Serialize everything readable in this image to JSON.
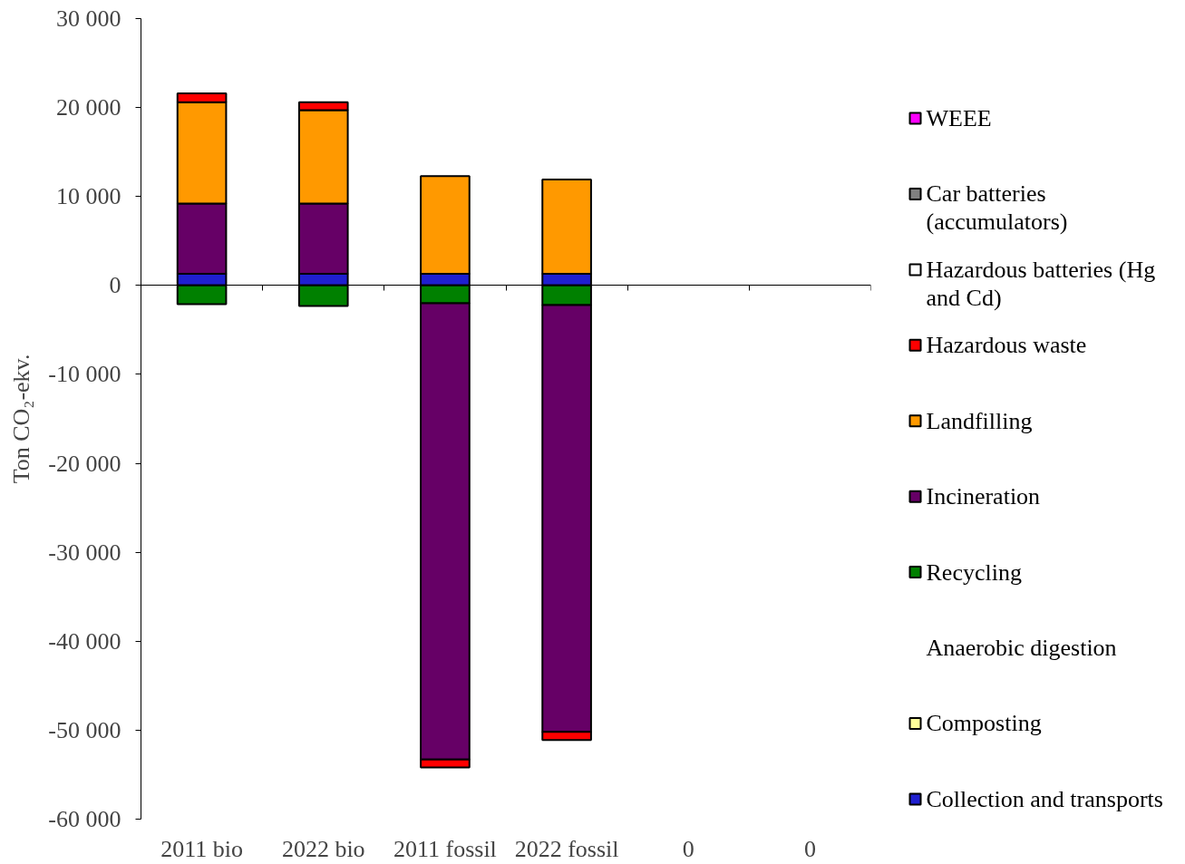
{
  "chart_data": {
    "type": "bar",
    "stacked": true,
    "legend": "right",
    "ylabel": "Ton CO₂-ekv.",
    "categories": [
      "2011 bio",
      "2022 bio",
      "2011 fossil",
      "2022 fossil",
      "0",
      "0"
    ],
    "ylim": [
      -60000,
      30000
    ],
    "yticks": [
      {
        "value": -60000,
        "label": "-60 000"
      },
      {
        "value": -50000,
        "label": "-50 000"
      },
      {
        "value": -40000,
        "label": "-40 000"
      },
      {
        "value": -30000,
        "label": "-30 000"
      },
      {
        "value": -20000,
        "label": "-20 000"
      },
      {
        "value": -10000,
        "label": "-10 000"
      },
      0,
      {
        "value": 10000,
        "label": "10 000"
      },
      {
        "value": 20000,
        "label": "20 000"
      },
      {
        "value": 30000,
        "label": "30 000"
      }
    ],
    "series": [
      {
        "name": "Collection and transports",
        "color": "#1f1fd0",
        "values": [
          1300,
          1300,
          1300,
          1300,
          null,
          null
        ]
      },
      {
        "name": "Composting",
        "color": "#ffff99",
        "values": [
          null,
          null,
          null,
          null,
          null,
          null
        ]
      },
      {
        "name": "Anaerobic digestion",
        "color": null,
        "values": [
          null,
          null,
          null,
          null,
          null,
          null
        ]
      },
      {
        "name": "Recycling",
        "color": "#008000",
        "values": [
          -2100,
          -2300,
          -2000,
          -2200,
          null,
          null
        ]
      },
      {
        "name": "Incineration",
        "color": "#660066",
        "values": [
          7900,
          7900,
          -51300,
          -48000,
          null,
          null
        ]
      },
      {
        "name": "Landfilling",
        "color": "#ff9900",
        "values": [
          11400,
          10500,
          11000,
          10600,
          null,
          null
        ]
      },
      {
        "name": "Hazardous waste",
        "color": "#ff0000",
        "values": [
          1000,
          900,
          -900,
          -900,
          null,
          null
        ]
      },
      {
        "name": "Hazardous batteries (Hg and Cd)",
        "color": "#ffffff",
        "values": [
          null,
          null,
          null,
          null,
          null,
          null
        ]
      },
      {
        "name": "Car batteries (accumulators)",
        "color": "#808080",
        "values": [
          null,
          null,
          null,
          null,
          null,
          null
        ]
      },
      {
        "name": "WEEE",
        "color": "#ff00ff",
        "values": [
          null,
          null,
          null,
          null,
          null,
          null
        ]
      }
    ]
  }
}
